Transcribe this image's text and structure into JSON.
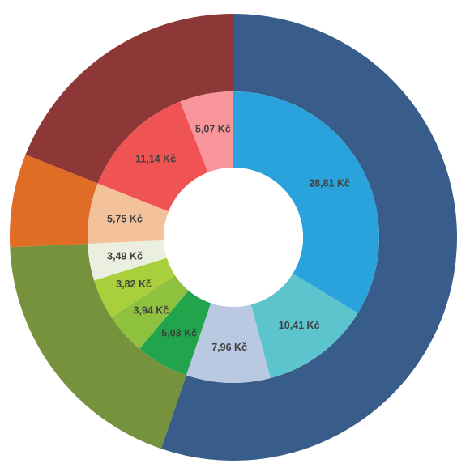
{
  "chart_data": {
    "type": "pie",
    "subtype": "sunburst",
    "title": "",
    "legend": "none",
    "inner_ring": {
      "unit": "Kč",
      "slices": [
        {
          "value": 28.81,
          "label": "28,81 Kč",
          "color": "#2aa3dc"
        },
        {
          "value": 10.41,
          "label": "10,41 Kč",
          "color": "#5cc4cd"
        },
        {
          "value": 7.96,
          "label": "7,96 Kč",
          "color": "#b8c9e1"
        },
        {
          "value": 5.03,
          "label": "5,03 Kč",
          "color": "#22a44c"
        },
        {
          "value": 3.94,
          "label": "3,94 Kč",
          "color": "#8dc13e"
        },
        {
          "value": 3.82,
          "label": "3,82 Kč",
          "color": "#a9cf3d"
        },
        {
          "value": 3.49,
          "label": "3,49 Kč",
          "color": "#ebefdf"
        },
        {
          "value": 5.75,
          "label": "5,75 Kč",
          "color": "#f3c29a"
        },
        {
          "value": 11.14,
          "label": "11,14 Kč",
          "color": "#ef5354"
        },
        {
          "value": 5.07,
          "label": "5,07 Kč",
          "color": "#f7959b"
        }
      ]
    },
    "outer_ring": {
      "slices": [
        {
          "value": 47.18,
          "color": "#385d8a"
        },
        {
          "value": 16.28,
          "color": "#77923c"
        },
        {
          "value": 5.75,
          "color": "#e06c26"
        },
        {
          "value": 16.21,
          "color": "#8d3736"
        }
      ]
    }
  }
}
